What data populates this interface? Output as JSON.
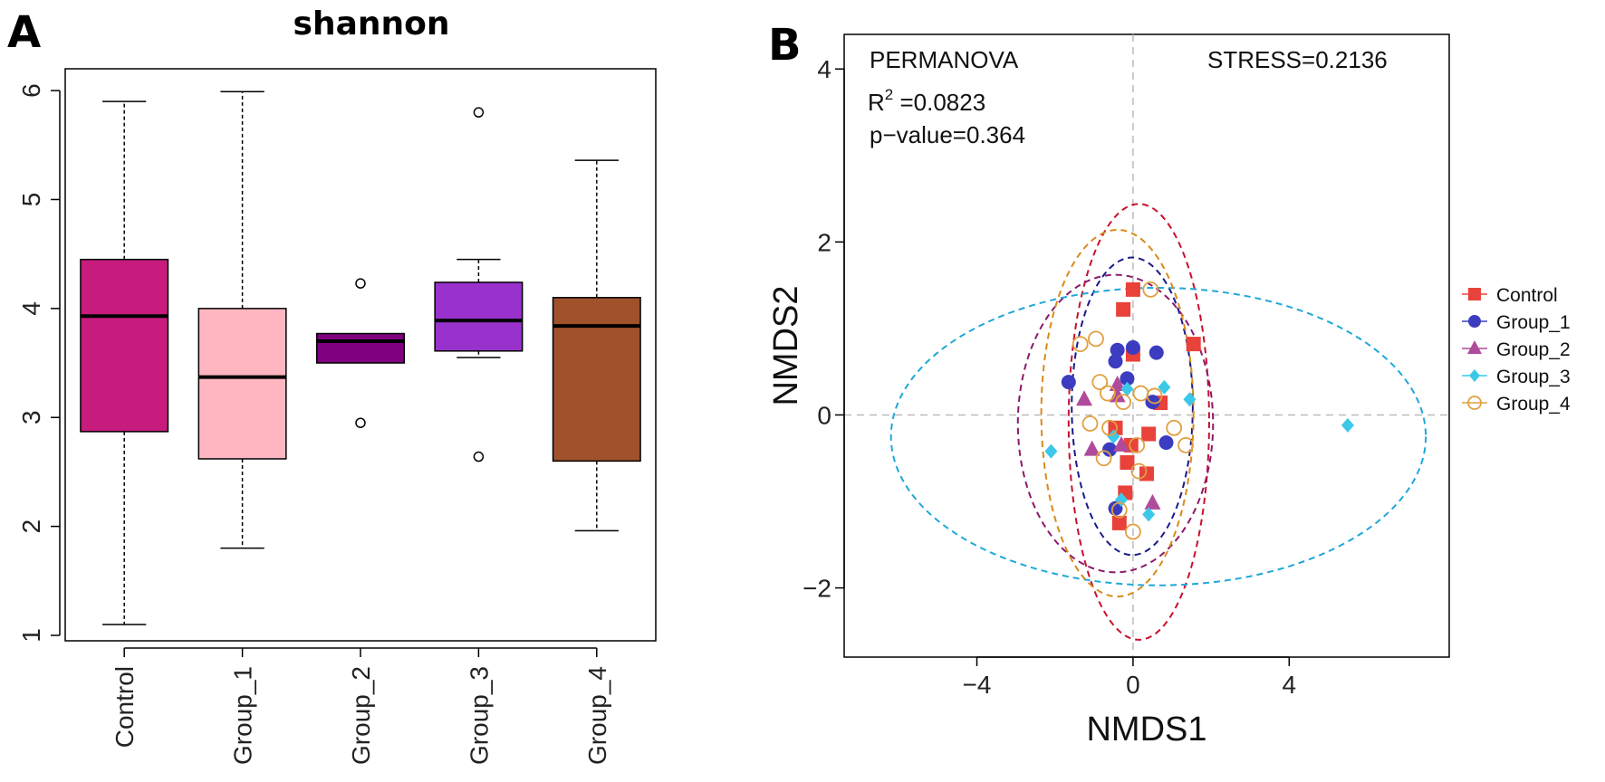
{
  "colors": {
    "Control": "#E8423A",
    "Group_1": "#3C3CC0",
    "Group_2": "#B04A9A",
    "Group_3": "#3CC8E8",
    "Group_4": "#E0A040",
    "box_Control": "#C71B7E",
    "box_Group_1": "#FFB6C1",
    "box_Group_2": "#800080",
    "box_Group_3": "#9932CC",
    "box_Group_4": "#A0522D",
    "ellipse_Control": "#C8102E",
    "ellipse_Group_1": "#1A1A8C",
    "ellipse_Group_2": "#8B1A6B",
    "ellipse_Group_3": "#1EA8D8",
    "ellipse_Group_4": "#D98A1A"
  },
  "chart_data": [
    {
      "panel": "A",
      "type": "box",
      "title": "shannon",
      "xlabel": "",
      "ylabel": "",
      "categories": [
        "Control",
        "Group_1",
        "Group_2",
        "Group_3",
        "Group_4"
      ],
      "ylim": [
        0.95,
        6.2
      ],
      "yticks": [
        1,
        2,
        3,
        4,
        5,
        6
      ],
      "grid": false,
      "boxes": [
        {
          "name": "Control",
          "whisker_low": 1.1,
          "q1": 2.87,
          "median": 3.93,
          "q3": 4.45,
          "whisker_high": 5.9,
          "outliers": []
        },
        {
          "name": "Group_1",
          "whisker_low": 1.8,
          "q1": 2.62,
          "median": 3.37,
          "q3": 4.0,
          "whisker_high": 5.99,
          "outliers": []
        },
        {
          "name": "Group_2",
          "whisker_low": 3.5,
          "q1": 3.5,
          "median": 3.7,
          "q3": 3.77,
          "whisker_high": 3.77,
          "outliers": [
            4.23,
            2.95
          ]
        },
        {
          "name": "Group_3",
          "whisker_low": 3.55,
          "q1": 3.61,
          "median": 3.89,
          "q3": 4.24,
          "whisker_high": 4.45,
          "outliers": [
            5.8,
            2.64
          ]
        },
        {
          "name": "Group_4",
          "whisker_low": 1.96,
          "q1": 2.6,
          "median": 3.84,
          "q3": 4.1,
          "whisker_high": 5.36,
          "outliers": []
        }
      ]
    },
    {
      "panel": "B",
      "type": "scatter",
      "title": "",
      "xlabel": "NMDS1",
      "ylabel": "NMDS2",
      "xlim": [
        -7.4,
        8.1
      ],
      "ylim": [
        -2.8,
        4.4
      ],
      "xticks": [
        -4,
        0,
        4
      ],
      "yticks": [
        -2,
        0,
        2,
        4
      ],
      "xtick_labels": [
        "−4",
        "0",
        "4"
      ],
      "ytick_labels": [
        "−2",
        "0",
        "2",
        "4"
      ],
      "grid": false,
      "reference_lines": {
        "x": 0,
        "y": 0
      },
      "annotations": {
        "method": "PERMANOVA",
        "r2_label": "R",
        "r2_sup": "2",
        "r2_value": " =0.0823",
        "pvalue": "p−value=0.364",
        "stress": "STRESS=0.2136"
      },
      "legend_position": "right",
      "series": [
        {
          "name": "Control",
          "marker": "square",
          "points": [
            [
              0,
              1.45
            ],
            [
              -0.25,
              1.22
            ],
            [
              0,
              0.7
            ],
            [
              1.55,
              0.82
            ],
            [
              0.7,
              0.14
            ],
            [
              -0.45,
              -0.15
            ],
            [
              0.4,
              -0.22
            ],
            [
              -0.05,
              -0.35
            ],
            [
              -0.15,
              -0.55
            ],
            [
              0.35,
              -0.68
            ],
            [
              -0.2,
              -0.9
            ],
            [
              -0.35,
              -1.25
            ]
          ]
        },
        {
          "name": "Group_1",
          "marker": "circle",
          "points": [
            [
              -0.4,
              0.75
            ],
            [
              -0.45,
              0.62
            ],
            [
              0,
              0.78
            ],
            [
              0.6,
              0.72
            ],
            [
              -0.15,
              0.42
            ],
            [
              -1.65,
              0.38
            ],
            [
              -0.6,
              -0.4
            ],
            [
              0.85,
              -0.32
            ],
            [
              0.5,
              0.15
            ],
            [
              -0.45,
              -1.08
            ]
          ]
        },
        {
          "name": "Group_2",
          "marker": "triangle",
          "points": [
            [
              -0.4,
              0.35
            ],
            [
              -1.25,
              0.18
            ],
            [
              -0.4,
              0.22
            ],
            [
              -1.05,
              -0.4
            ],
            [
              -0.3,
              -0.35
            ],
            [
              0.5,
              -1.02
            ]
          ]
        },
        {
          "name": "Group_3",
          "marker": "diamond",
          "points": [
            [
              0.8,
              0.32
            ],
            [
              1.45,
              0.18
            ],
            [
              -2.1,
              -0.42
            ],
            [
              -0.5,
              -0.25
            ],
            [
              -0.15,
              0.3
            ],
            [
              -0.3,
              -0.98
            ],
            [
              0.4,
              -1.15
            ],
            [
              5.5,
              -0.12
            ]
          ]
        },
        {
          "name": "Group_4",
          "marker": "circle-open",
          "points": [
            [
              0.45,
              1.45
            ],
            [
              -1.35,
              0.82
            ],
            [
              -0.95,
              0.88
            ],
            [
              -0.85,
              0.38
            ],
            [
              -0.65,
              0.25
            ],
            [
              -0.25,
              0.15
            ],
            [
              0.2,
              0.25
            ],
            [
              0.55,
              0.22
            ],
            [
              -0.6,
              -0.15
            ],
            [
              0.1,
              -0.35
            ],
            [
              -1.1,
              -0.1
            ],
            [
              0.15,
              -0.65
            ],
            [
              -0.75,
              -0.5
            ],
            [
              1.05,
              -0.15
            ],
            [
              1.35,
              -0.35
            ],
            [
              -0.35,
              -1.1
            ],
            [
              0,
              -1.35
            ]
          ]
        }
      ],
      "ellipses": [
        {
          "name": "Control",
          "cx": 0.15,
          "cy": -0.08,
          "rx": 1.8,
          "ry": 2.52
        },
        {
          "name": "Group_1",
          "cx": -0.02,
          "cy": 0.1,
          "rx": 1.55,
          "ry": 1.72
        },
        {
          "name": "Group_2",
          "cx": -0.45,
          "cy": -0.1,
          "rx": 2.5,
          "ry": 1.72
        },
        {
          "name": "Group_3",
          "cx": 0.65,
          "cy": -0.25,
          "rx": 6.85,
          "ry": 1.72
        },
        {
          "name": "Group_4",
          "cx": -0.4,
          "cy": 0.02,
          "rx": 1.95,
          "ry": 2.12
        }
      ]
    }
  ]
}
